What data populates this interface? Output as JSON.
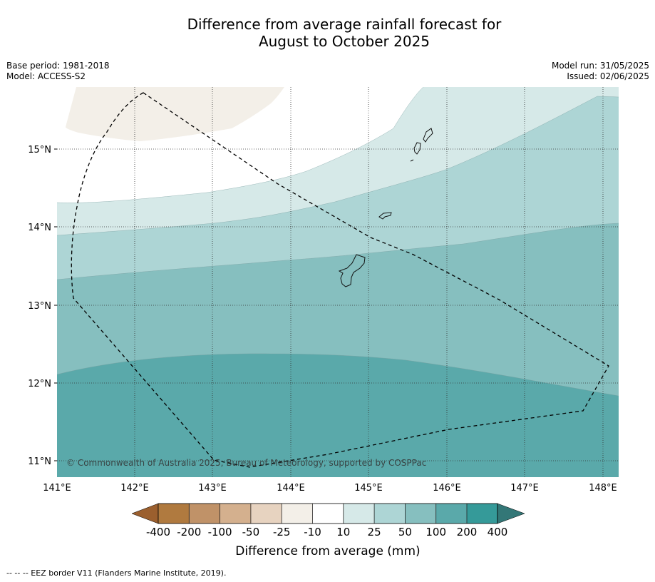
{
  "title": {
    "line1": "Difference from average rainfall forecast for",
    "line2": "August to October 2025"
  },
  "meta": {
    "base_period": "Base period: 1981-2018",
    "model": "Model: ACCESS-S2",
    "model_run": "Model run: 31/05/2025",
    "issued": "Issued: 02/06/2025"
  },
  "map": {
    "lon_range": [
      141.0,
      148.2
    ],
    "lat_range": [
      10.8,
      15.8
    ],
    "lon_ticks": [
      "141°E",
      "142°E",
      "143°E",
      "144°E",
      "145°E",
      "146°E",
      "147°E",
      "148°E"
    ],
    "lat_ticks": [
      "11°N",
      "12°N",
      "13°N",
      "14°N",
      "15°N"
    ],
    "copyright": "© Commonwealth of Australia 2025, Bureau of Meteorology, supported by COSPPac",
    "gridlines": "dotted"
  },
  "colorbar": {
    "labels": [
      "-400",
      "-200",
      "-100",
      "-50",
      "-25",
      "-10",
      "10",
      "25",
      "50",
      "100",
      "200",
      "400"
    ],
    "colors": [
      "#9b5f2e",
      "#b07a3f",
      "#c09268",
      "#d4b08e",
      "#e7d3c0",
      "#f3efe8",
      "#ffffff",
      "#d6e9e8",
      "#add5d5",
      "#86bfbf",
      "#5aa9aa",
      "#359a99",
      "#337777"
    ],
    "label": "Difference from average (mm)"
  },
  "footnote": "--  --  -- EEZ border V11 (Flanders Marine Institute, 2019)."
}
